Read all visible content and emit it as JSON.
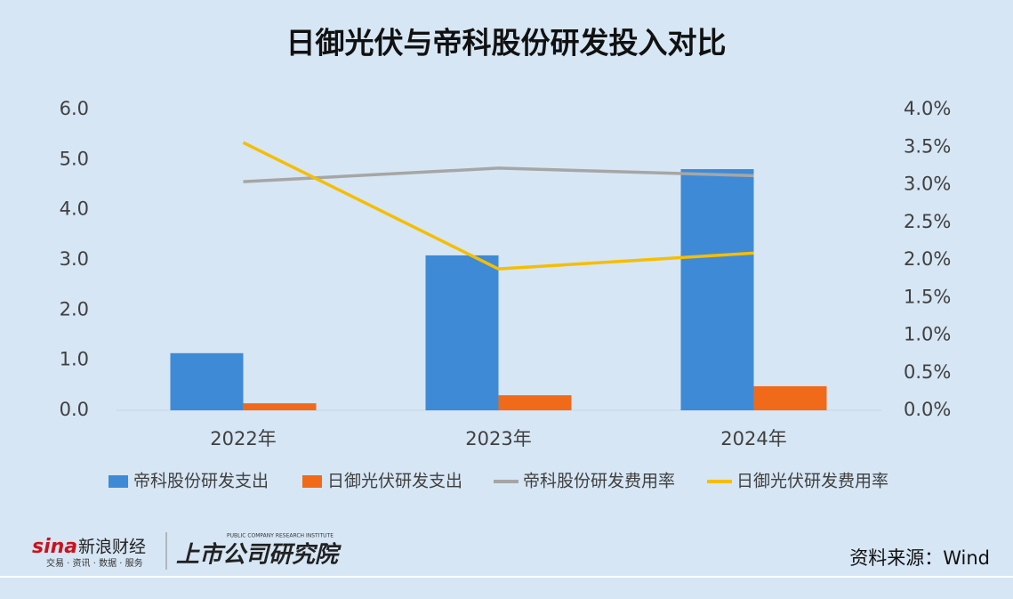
{
  "chart_data": {
    "type": "bar",
    "title": "日御光伏与帝科股份研发投入对比",
    "categories": [
      "2022年",
      "2023年",
      "2024年"
    ],
    "series": [
      {
        "name": "帝科股份研发支出",
        "type": "bar",
        "color": "#3f8ad6",
        "values": [
          1.14,
          3.09,
          4.81
        ]
      },
      {
        "name": "日御光伏研发支出",
        "type": "bar",
        "color": "#f06a1a",
        "values": [
          0.14,
          0.3,
          0.48
        ]
      },
      {
        "name": "帝科股份研发费用率",
        "type": "line",
        "axis": "y2",
        "color": "#a6a6a6",
        "values": [
          3.04,
          3.22,
          3.12
        ]
      },
      {
        "name": "日御光伏研发费用率",
        "type": "line",
        "axis": "y2",
        "color": "#f5be00",
        "values": [
          3.56,
          1.88,
          2.09
        ]
      }
    ],
    "ylim": [
      0,
      6
    ],
    "yticks": [
      {
        "value": 0,
        "label": "0.0"
      },
      {
        "value": 1,
        "label": "1.0"
      },
      {
        "value": 2,
        "label": "2.0"
      },
      {
        "value": 3,
        "label": "3.0"
      },
      {
        "value": 4,
        "label": "4.0"
      },
      {
        "value": 5,
        "label": "5.0"
      },
      {
        "value": 6,
        "label": "6.0"
      }
    ],
    "y2lim": [
      0,
      4
    ],
    "y2ticks": [
      {
        "value": 0,
        "label": "0.0%"
      },
      {
        "value": 0.5,
        "label": "0.5%"
      },
      {
        "value": 1,
        "label": "1.0%"
      },
      {
        "value": 1.5,
        "label": "1.5%"
      },
      {
        "value": 2,
        "label": "2.0%"
      },
      {
        "value": 2.5,
        "label": "2.5%"
      },
      {
        "value": 3,
        "label": "3.0%"
      },
      {
        "value": 3.5,
        "label": "3.5%"
      },
      {
        "value": 4,
        "label": "4.0%"
      }
    ],
    "grid": false,
    "legend": "bottom",
    "source": "资料来源：Wind",
    "logo": {
      "brand": "新浪财经",
      "brand_sub": "交易 · 资讯 · 数据 · 服务",
      "institute": "上市公司研究院",
      "institute_en": "PUBLIC COMPANY RESEARCH INSTITUTE",
      "sina": "sina"
    }
  }
}
